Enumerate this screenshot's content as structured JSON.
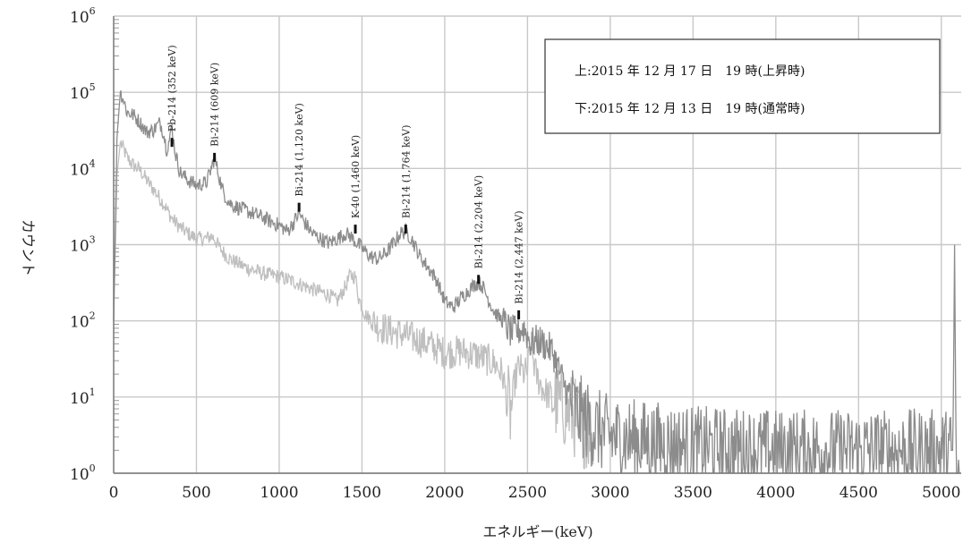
{
  "chart_data": {
    "type": "line",
    "xlabel": "エネルギー(keV)",
    "ylabel": "カウント",
    "xlim": [
      0,
      5120
    ],
    "ylim_log10": [
      0,
      6
    ],
    "y_scale": "log",
    "grid": true,
    "x_ticks": [
      "0",
      "500",
      "1000",
      "1500",
      "2000",
      "2500",
      "3000",
      "3500",
      "4000",
      "4500",
      "5000"
    ],
    "y_ticks": [
      {
        "base": "10",
        "exp": "0"
      },
      {
        "base": "10",
        "exp": "1"
      },
      {
        "base": "10",
        "exp": "2"
      },
      {
        "base": "10",
        "exp": "3"
      },
      {
        "base": "10",
        "exp": "4"
      },
      {
        "base": "10",
        "exp": "5"
      },
      {
        "base": "10",
        "exp": "6"
      }
    ],
    "legend": {
      "placement": "top-right",
      "lines": [
        "上:2015 年 12 月 17 日　19 時(上昇時)",
        "下:2015 年 12 月 13 日　19 時(通常時)"
      ]
    },
    "series": [
      {
        "color": "#8c8c8c",
        "x": [
          0,
          20,
          40,
          60,
          80,
          120,
          160,
          200,
          240,
          280,
          300,
          320,
          340,
          352,
          370,
          400,
          450,
          500,
          560,
          590,
          609,
          630,
          660,
          700,
          760,
          800,
          850,
          900,
          950,
          1000,
          1050,
          1090,
          1120,
          1150,
          1200,
          1250,
          1300,
          1350,
          1400,
          1430,
          1460,
          1500,
          1550,
          1600,
          1650,
          1700,
          1730,
          1764,
          1800,
          1850,
          1900,
          1950,
          2000,
          2050,
          2100,
          2150,
          2180,
          2204,
          2230,
          2260,
          2300,
          2350,
          2400,
          2447,
          2480,
          2520,
          2560,
          2600,
          2650,
          2700,
          2750,
          2800,
          2850,
          2900,
          3000,
          3500,
          4000,
          4500,
          5000,
          5070,
          5080,
          5090,
          5110
        ],
        "y": [
          100,
          25000,
          100000,
          80000,
          55000,
          50000,
          40000,
          30000,
          32000,
          40000,
          30000,
          18000,
          25000,
          35000,
          17000,
          9000,
          7000,
          6000,
          6500,
          10000,
          14000,
          9000,
          5000,
          3500,
          3000,
          2800,
          2500,
          2300,
          2000,
          1800,
          1500,
          2000,
          2600,
          2000,
          1400,
          1200,
          1050,
          1200,
          1400,
          1300,
          1100,
          900,
          700,
          650,
          800,
          1100,
          1400,
          1500,
          1200,
          700,
          500,
          350,
          180,
          150,
          200,
          260,
          300,
          320,
          280,
          200,
          130,
          100,
          70,
          75,
          80,
          50,
          55,
          50,
          40,
          20,
          10,
          6,
          5,
          4,
          3,
          2.2,
          2,
          2,
          2,
          2,
          1000,
          1,
          1
        ]
      },
      {
        "color": "#bfbfbf",
        "x": [
          0,
          20,
          40,
          60,
          80,
          120,
          160,
          200,
          250,
          300,
          352,
          400,
          450,
          500,
          560,
          590,
          609,
          640,
          700,
          800,
          900,
          1000,
          1100,
          1200,
          1300,
          1350,
          1400,
          1430,
          1460,
          1480,
          1520,
          1600,
          1700,
          1764,
          1800,
          1900,
          2000,
          2100,
          2200,
          2300,
          2350,
          2380,
          2400,
          2420,
          2447,
          2480,
          2500,
          2520,
          2550,
          2600,
          2700,
          2800,
          2900
        ],
        "y": [
          100,
          8000,
          22000,
          18000,
          14000,
          11000,
          9500,
          7000,
          5000,
          3500,
          2200,
          1700,
          1400,
          1200,
          1200,
          1300,
          1200,
          900,
          650,
          500,
          420,
          380,
          320,
          260,
          220,
          180,
          280,
          400,
          380,
          200,
          120,
          85,
          70,
          65,
          60,
          50,
          38,
          40,
          35,
          28,
          20,
          8,
          6,
          15,
          25,
          20,
          22,
          50,
          20,
          12,
          8,
          5,
          3
        ]
      }
    ],
    "annotations": [
      {
        "x": 352,
        "y": 22000,
        "label": "Pb-214 (352 keV)"
      },
      {
        "x": 609,
        "y": 14000,
        "label": "Bi-214 (609 keV)"
      },
      {
        "x": 1120,
        "y": 3100,
        "label": "Bi-214 (1,120 keV)"
      },
      {
        "x": 1460,
        "y": 1600,
        "label": "K-40 (1,460 keV)"
      },
      {
        "x": 1764,
        "y": 1600,
        "label": "Bi-214 (1,764 keV)"
      },
      {
        "x": 2204,
        "y": 350,
        "label": "Bi-214 (2,204 keV)"
      },
      {
        "x": 2447,
        "y": 120,
        "label": "Bi-214 (2,447 keV)"
      }
    ]
  }
}
